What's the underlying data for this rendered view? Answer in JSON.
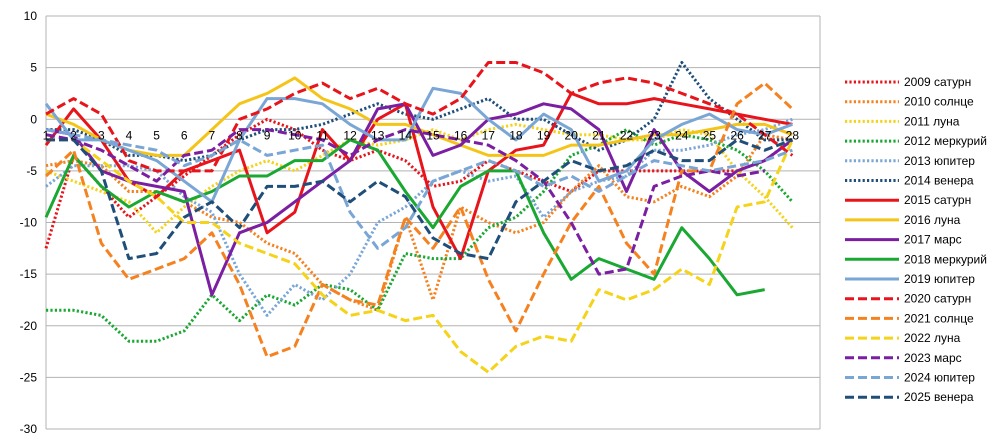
{
  "chart_data": {
    "type": "line",
    "title": "",
    "xlabel": "",
    "ylabel": "",
    "ylim": [
      -30,
      10
    ],
    "yticks": [
      10,
      5,
      0,
      -5,
      -10,
      -15,
      -20,
      -25,
      -30
    ],
    "categories": [
      "1",
      "2",
      "3",
      "4",
      "5",
      "6",
      "7",
      "8",
      "9",
      "10",
      "11",
      "12",
      "13",
      "14",
      "15",
      "16",
      "17",
      "18",
      "19",
      "20",
      "21",
      "22",
      "23",
      "24",
      "25",
      "26",
      "27",
      "28"
    ],
    "grid": "horizontal",
    "legend_position": "right",
    "series": [
      {
        "name": "2009 сатурн",
        "color": "#e8141b",
        "style": "dotted",
        "values": [
          -12.5,
          -3.5,
          -6.5,
          -9.5,
          -7.5,
          -5.5,
          -3.5,
          -1.5,
          0,
          -1,
          -3,
          -4,
          -3,
          -4,
          -6.5,
          -6,
          -4,
          -5,
          -6,
          -7,
          -5,
          -5,
          -5,
          -5,
          -5,
          -5,
          -4,
          -2
        ]
      },
      {
        "name": "2010 солнце",
        "color": "#f58220",
        "style": "dotted",
        "values": [
          -4.5,
          -4,
          -4.5,
          -7,
          -7,
          -8,
          -9.5,
          -10,
          -12,
          -13,
          -16,
          -17.5,
          -18.5,
          -9.5,
          -17.5,
          -8.5,
          -10,
          -11,
          -10,
          -7,
          -4.5,
          -7.5,
          -8,
          -6.5,
          -7.5,
          -5.5,
          -1.5,
          -2
        ]
      },
      {
        "name": "2011 луна",
        "color": "#f4d31a",
        "style": "dotted",
        "values": [
          -5,
          -6,
          -7,
          -8,
          -11,
          -8.5,
          -6.5,
          -5,
          -4,
          -5,
          -3.5,
          -2,
          -2.5,
          -2,
          -1,
          -2,
          -1,
          -0.5,
          -1,
          -1.5,
          -1.5,
          -2,
          -2,
          -1,
          -1.5,
          -5,
          -7.5,
          -10.5
        ]
      },
      {
        "name": "2012 меркурий",
        "color": "#1aa832",
        "style": "dotted",
        "values": [
          -18.5,
          -18.5,
          -19,
          -21.5,
          -21.5,
          -20.5,
          -17,
          -19.5,
          -17,
          -18,
          -16,
          -16.5,
          -18.5,
          -13,
          -13.5,
          -13.5,
          -10.5,
          -9.5,
          -7,
          -3.5,
          -2.5,
          -1,
          -2.5,
          -1.5,
          -2,
          -3,
          -5,
          -8
        ]
      },
      {
        "name": "2013 юпитер",
        "color": "#7aa6d6",
        "style": "dotted",
        "values": [
          -6.5,
          -4.5,
          -4.5,
          -4.5,
          -5,
          -7.5,
          -9,
          -15,
          -19,
          -16,
          -17.5,
          -15,
          -10,
          -8.5,
          -6,
          -5,
          -6,
          -5.5,
          -9.5,
          -7,
          -6,
          -5.5,
          -3,
          -3,
          -2.5,
          -1.5,
          -1,
          0
        ]
      },
      {
        "name": "2014 венера",
        "color": "#1f4e79",
        "style": "dotted",
        "values": [
          -1,
          -1,
          -2,
          -3.5,
          -3.5,
          -4,
          -3.5,
          -2,
          -1,
          -1,
          -0.5,
          0.5,
          1.5,
          0.5,
          0,
          1,
          2,
          0,
          0,
          -1.5,
          -3,
          -2,
          0,
          5.5,
          2,
          0,
          -2,
          -2
        ]
      },
      {
        "name": "2015 сатурн",
        "color": "#e8141b",
        "style": "solid",
        "values": [
          -2.5,
          1,
          -2,
          -6,
          -7.5,
          -5,
          -4,
          -3,
          -11,
          -9,
          -1,
          -4,
          0,
          1.5,
          -8.5,
          -13.5,
          -5,
          -3,
          -2.5,
          2.5,
          1.5,
          1.5,
          2,
          1.5,
          1,
          0.5,
          0,
          -0.5
        ]
      },
      {
        "name": "2016 луна",
        "color": "#f4c518",
        "style": "solid",
        "values": [
          0.5,
          -0.5,
          -2,
          -3,
          -3.5,
          -3.5,
          -1,
          1.5,
          2.5,
          4,
          2,
          1,
          -0.5,
          -0.5,
          -1.5,
          -2.5,
          -3.5,
          -3.5,
          -3.5,
          -2.5,
          -2.5,
          -2,
          -1.5,
          -1.5,
          -1,
          -0.5,
          -0.5,
          -1.5
        ]
      },
      {
        "name": "2017 марс",
        "color": "#7b1fa2",
        "style": "solid",
        "values": [
          -1,
          -1.5,
          -5,
          -6,
          -6.5,
          -7,
          -17,
          -11,
          -10,
          -8,
          -6,
          -4,
          1,
          1.5,
          -3.5,
          -2.5,
          0,
          0.5,
          1.5,
          1,
          -1,
          -7,
          -1,
          -5,
          -7,
          -5,
          -4,
          -2
        ]
      },
      {
        "name": "2018 меркурий",
        "color": "#1aa832",
        "style": "solid",
        "values": [
          -9.5,
          -3.5,
          -6.5,
          -8.5,
          -7,
          -8,
          -7,
          -5.5,
          -5.5,
          -4,
          -4,
          -2,
          -3,
          -7,
          -10.5,
          -6.5,
          -5,
          -5,
          -11,
          -15.5,
          -13.5,
          -14.5,
          -15.5,
          -10.5,
          -13.5,
          -17,
          -16.5,
          null
        ]
      },
      {
        "name": "2019 юпитер",
        "color": "#7aa6d6",
        "style": "solid",
        "values": [
          1.5,
          -2,
          -2,
          -3,
          -4,
          -6,
          -8,
          -2,
          2,
          2,
          1.5,
          -0.5,
          -2,
          -2,
          3,
          2.5,
          0,
          -2,
          0.5,
          -1,
          -6,
          -5,
          -2,
          -0.5,
          0.5,
          -1,
          -1.5,
          -0.5
        ]
      },
      {
        "name": "2020 сатурн",
        "color": "#e8141b",
        "style": "dashed",
        "values": [
          0.5,
          2,
          0.5,
          -4,
          -5,
          -5,
          -5,
          0,
          1,
          2.5,
          3.5,
          2,
          3,
          1.5,
          0.5,
          2,
          5.5,
          5.5,
          4.5,
          2.5,
          3.5,
          4,
          3.5,
          2.5,
          1.5,
          0.5,
          -1.5,
          -3.5
        ]
      },
      {
        "name": "2021 солнце",
        "color": "#f58220",
        "style": "dashed",
        "values": [
          -5.5,
          -3,
          -12,
          -15.5,
          -14.5,
          -13.5,
          -11,
          -16,
          -23,
          -22,
          -16,
          -17.5,
          -18,
          -9.5,
          -12.5,
          -8.5,
          -15.5,
          -20.5,
          -15,
          -10,
          -6.5,
          -12,
          -15,
          -5,
          -5,
          1.5,
          3.5,
          1
        ]
      },
      {
        "name": "2022 луна",
        "color": "#f4d31a",
        "style": "dashed",
        "values": [
          -2,
          -2,
          -4,
          -6,
          -7.5,
          -10,
          -10,
          -12,
          -13,
          -14,
          -17,
          -19,
          -18.5,
          -19.5,
          -19,
          -22.5,
          -24.5,
          -22,
          -21,
          -21.5,
          -16.5,
          -17.5,
          -16.5,
          -14.5,
          -16,
          -8.5,
          -8,
          -2
        ]
      },
      {
        "name": "2023 марс",
        "color": "#7b1fa2",
        "style": "dashed",
        "values": [
          -1.5,
          -2,
          -3,
          -4.5,
          -6,
          -3.5,
          -3,
          -1,
          -1,
          -1.5,
          -2,
          -3.5,
          -2,
          -1,
          -1.5,
          -2,
          -2.5,
          -4,
          -6,
          -10,
          -15,
          -14.5,
          -6.5,
          -5.5,
          -5,
          -5.5,
          -5,
          null
        ]
      },
      {
        "name": "2024 юпитер",
        "color": "#7aa6d6",
        "style": "dashed",
        "values": [
          -1,
          -1.5,
          -2,
          -2.5,
          -3,
          -4.5,
          -3.5,
          -2,
          -3.5,
          -3,
          -2.5,
          -9,
          -12.5,
          -10.5,
          -6,
          -5,
          -4,
          -5,
          -6.5,
          -5.5,
          -7,
          -5.5,
          -4,
          -4.5,
          -5,
          -4.5,
          -4,
          -3
        ]
      },
      {
        "name": "2025 венера",
        "color": "#1f4e79",
        "style": "dashed",
        "values": [
          -2,
          -2,
          -5,
          -13.5,
          -13,
          -9.5,
          -8,
          -10.5,
          -6.5,
          -6.5,
          -6,
          -8,
          -6,
          -7.5,
          -11.5,
          -13,
          -13.5,
          -8,
          -6,
          -4,
          -5,
          -4.5,
          -3,
          -4,
          -4,
          -2,
          -3,
          -2
        ]
      }
    ]
  }
}
